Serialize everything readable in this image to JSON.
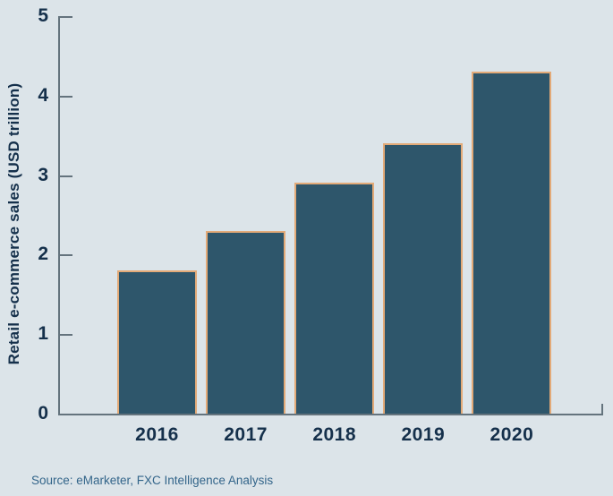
{
  "chart_data": {
    "type": "bar",
    "categories": [
      "2016",
      "2017",
      "2018",
      "2019",
      "2020"
    ],
    "values": [
      1.8,
      2.3,
      2.9,
      3.4,
      4.3
    ],
    "title": "",
    "xlabel": "",
    "ylabel": "Retail e-commerce sales (USD trillion)",
    "ylim": [
      0,
      5
    ],
    "yticks": [
      0,
      1,
      2,
      3,
      4,
      5
    ],
    "grid": false,
    "legend": false,
    "bar_fill": "#2e566b",
    "bar_border": "#e3aa78",
    "background": "#dce4e9",
    "axis_color": "#64737d",
    "tick_label_color": "#15304b"
  },
  "source": {
    "label": "Source: eMarketer, FXC Intelligence Analysis",
    "color": "#33658a"
  }
}
